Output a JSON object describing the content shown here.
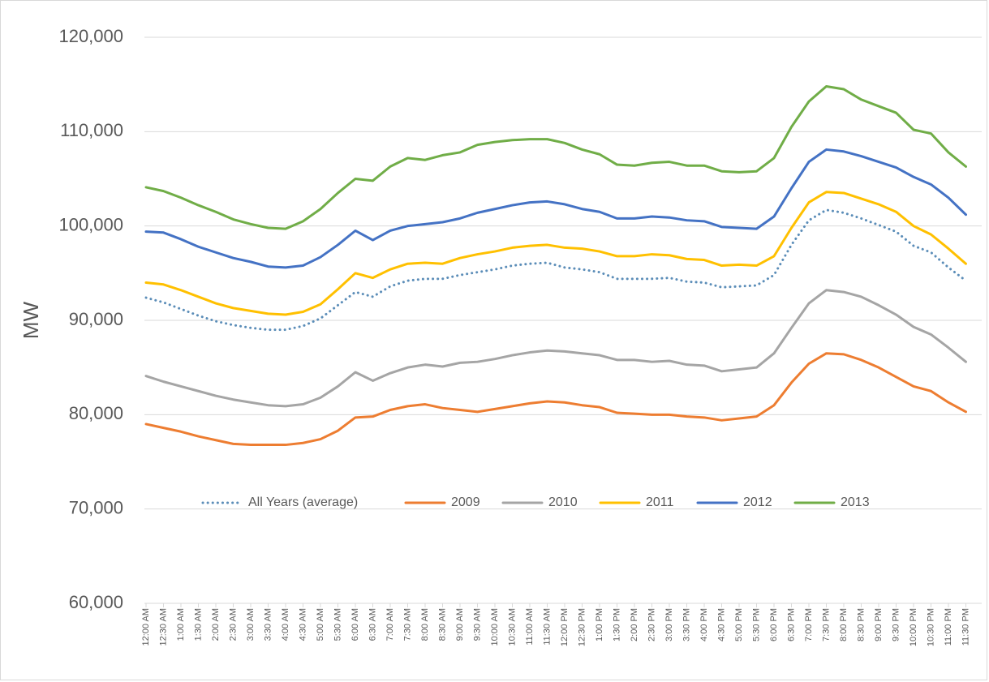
{
  "chart_data": {
    "type": "line",
    "y_label": "MW",
    "categories": [
      "12:00 AM",
      "12:30 AM",
      "1:00 AM",
      "1:30 AM",
      "2:00 AM",
      "2:30 AM",
      "3:00 AM",
      "3:30 AM",
      "4:00 AM",
      "4:30 AM",
      "5:00 AM",
      "5:30 AM",
      "6:00 AM",
      "6:30 AM",
      "7:00 AM",
      "7:30 AM",
      "8:00 AM",
      "8:30 AM",
      "9:00 AM",
      "9:30 AM",
      "10:00 AM",
      "10:30 AM",
      "11:00 AM",
      "11:30 AM",
      "12:00 PM",
      "12:30 PM",
      "1:00 PM",
      "1:30 PM",
      "2:00 PM",
      "2:30 PM",
      "3:00 PM",
      "3:30 PM",
      "4:00 PM",
      "4:30 PM",
      "5:00 PM",
      "5:30 PM",
      "6:00 PM",
      "6:30 PM",
      "7:00 PM",
      "7:30 PM",
      "8:00 PM",
      "8:30 PM",
      "9:00 PM",
      "9:30 PM",
      "10:00 PM",
      "10:30 PM",
      "11:00 PM",
      "11:30 PM"
    ],
    "series": [
      {
        "name": "All  Years (average)",
        "color": "#5b8db8",
        "style": "dotted",
        "values": [
          92400,
          91900,
          91200,
          90500,
          89900,
          89500,
          89200,
          89000,
          89000,
          89400,
          90200,
          91600,
          93000,
          92500,
          93600,
          94200,
          94400,
          94400,
          94800,
          95100,
          95400,
          95800,
          96000,
          96100,
          95600,
          95400,
          95100,
          94400,
          94400,
          94400,
          94500,
          94100,
          94000,
          93500,
          93600,
          93700,
          94800,
          98000,
          100600,
          101700,
          101400,
          100800,
          100100,
          99400,
          97900,
          97200,
          95600,
          94200
        ]
      },
      {
        "name": "2009",
        "color": "#ed7d31",
        "style": "solid",
        "values": [
          79000,
          78600,
          78200,
          77700,
          77300,
          76900,
          76800,
          76800,
          76800,
          77000,
          77400,
          78300,
          79700,
          79800,
          80500,
          80900,
          81100,
          80700,
          80500,
          80300,
          80600,
          80900,
          81200,
          81400,
          81300,
          81000,
          80800,
          80200,
          80100,
          80000,
          80000,
          79800,
          79700,
          79400,
          79600,
          79800,
          81000,
          83400,
          85400,
          86500,
          86400,
          85800,
          85000,
          84000,
          83000,
          82500,
          81300,
          80300
        ]
      },
      {
        "name": "2010",
        "color": "#a5a5a5",
        "style": "solid",
        "values": [
          84100,
          83500,
          83000,
          82500,
          82000,
          81600,
          81300,
          81000,
          80900,
          81100,
          81800,
          83000,
          84500,
          83600,
          84400,
          85000,
          85300,
          85100,
          85500,
          85600,
          85900,
          86300,
          86600,
          86800,
          86700,
          86500,
          86300,
          85800,
          85800,
          85600,
          85700,
          85300,
          85200,
          84600,
          84800,
          85000,
          86500,
          89200,
          91800,
          93200,
          93000,
          92500,
          91600,
          90600,
          89300,
          88500,
          87100,
          85600
        ]
      },
      {
        "name": "2011",
        "color": "#ffc000",
        "style": "solid",
        "values": [
          94000,
          93800,
          93200,
          92500,
          91800,
          91300,
          91000,
          90700,
          90600,
          90900,
          91700,
          93300,
          95000,
          94500,
          95400,
          96000,
          96100,
          96000,
          96600,
          97000,
          97300,
          97700,
          97900,
          98000,
          97700,
          97600,
          97300,
          96800,
          96800,
          97000,
          96900,
          96500,
          96400,
          95800,
          95900,
          95800,
          96800,
          99800,
          102500,
          103600,
          103500,
          102900,
          102300,
          101500,
          100000,
          99100,
          97600,
          96000
        ]
      },
      {
        "name": "2012",
        "color": "#4472c4",
        "style": "solid",
        "values": [
          99400,
          99300,
          98600,
          97800,
          97200,
          96600,
          96200,
          95700,
          95600,
          95800,
          96700,
          98000,
          99500,
          98500,
          99500,
          100000,
          100200,
          100400,
          100800,
          101400,
          101800,
          102200,
          102500,
          102600,
          102300,
          101800,
          101500,
          100800,
          100800,
          101000,
          100900,
          100600,
          100500,
          99900,
          99800,
          99700,
          101000,
          104000,
          106800,
          108100,
          107900,
          107400,
          106800,
          106200,
          105200,
          104400,
          103000,
          101200
        ]
      },
      {
        "name": "2013",
        "color": "#70ad47",
        "style": "solid",
        "values": [
          104100,
          103700,
          103000,
          102200,
          101500,
          100700,
          100200,
          99800,
          99700,
          100500,
          101800,
          103500,
          105000,
          104800,
          106300,
          107200,
          107000,
          107500,
          107800,
          108600,
          108900,
          109100,
          109200,
          109200,
          108800,
          108100,
          107600,
          106500,
          106400,
          106700,
          106800,
          106400,
          106400,
          105800,
          105700,
          105800,
          107200,
          110500,
          113200,
          114800,
          114500,
          113400,
          112700,
          112000,
          110200,
          109800,
          107800,
          106300
        ]
      }
    ],
    "ylim": [
      60000,
      120000
    ],
    "yticks": [
      {
        "value": 60000,
        "label": "60,000"
      },
      {
        "value": 70000,
        "label": "70,000"
      },
      {
        "value": 80000,
        "label": "80,000"
      },
      {
        "value": 90000,
        "label": "90,000"
      },
      {
        "value": 100000,
        "label": "100,000"
      },
      {
        "value": 110000,
        "label": "110,000"
      },
      {
        "value": 120000,
        "label": "120,000"
      }
    ],
    "grid": true,
    "legend": "inside-bottom"
  }
}
